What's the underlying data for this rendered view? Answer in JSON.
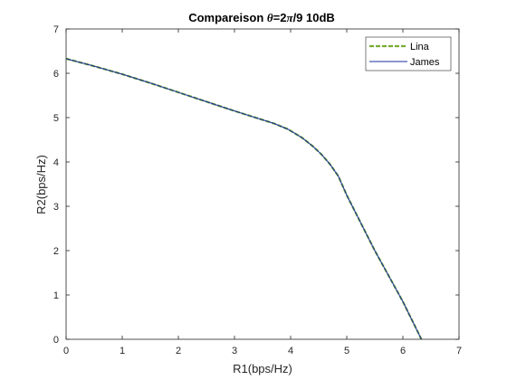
{
  "chart_data": {
    "type": "line",
    "title": {
      "prefix": "Compareison ",
      "symbol": "θ",
      "mid": "=2",
      "symbol2": "π",
      "suffix": "/9 10dB"
    },
    "xlabel": "R1(bps/Hz)",
    "ylabel": "R2(bps/Hz)",
    "xlim": [
      0,
      7
    ],
    "ylim": [
      0,
      7
    ],
    "xticks": [
      "0",
      "1",
      "2",
      "3",
      "4",
      "5",
      "6",
      "7"
    ],
    "yticks": [
      "0",
      "1",
      "2",
      "3",
      "4",
      "5",
      "6",
      "7"
    ],
    "grid": false,
    "legend_position": "top-right",
    "series": [
      {
        "name": "Lina",
        "color": "#77ac30",
        "style": "dashed",
        "x": [
          0,
          0.5,
          1.0,
          1.5,
          2.0,
          2.5,
          3.0,
          3.4,
          3.7,
          3.95,
          4.2,
          4.4,
          4.55,
          4.7,
          4.85,
          5.0,
          5.5,
          6.0,
          6.33
        ],
        "y": [
          6.33,
          6.16,
          5.98,
          5.78,
          5.57,
          5.36,
          5.15,
          4.99,
          4.87,
          4.74,
          4.55,
          4.35,
          4.17,
          3.95,
          3.68,
          3.25,
          2.0,
          0.85,
          0.0
        ]
      },
      {
        "name": "James",
        "color": "#1a2fa0",
        "style": "solid",
        "x": [
          0,
          0.5,
          1.0,
          1.5,
          2.0,
          2.5,
          3.0,
          3.4,
          3.7,
          3.95,
          4.2,
          4.4,
          4.55,
          4.7,
          4.85,
          5.0,
          5.5,
          6.0,
          6.33
        ],
        "y": [
          6.33,
          6.16,
          5.98,
          5.78,
          5.57,
          5.36,
          5.15,
          4.99,
          4.87,
          4.74,
          4.55,
          4.35,
          4.17,
          3.95,
          3.68,
          3.25,
          2.0,
          0.85,
          0.0
        ]
      }
    ]
  }
}
